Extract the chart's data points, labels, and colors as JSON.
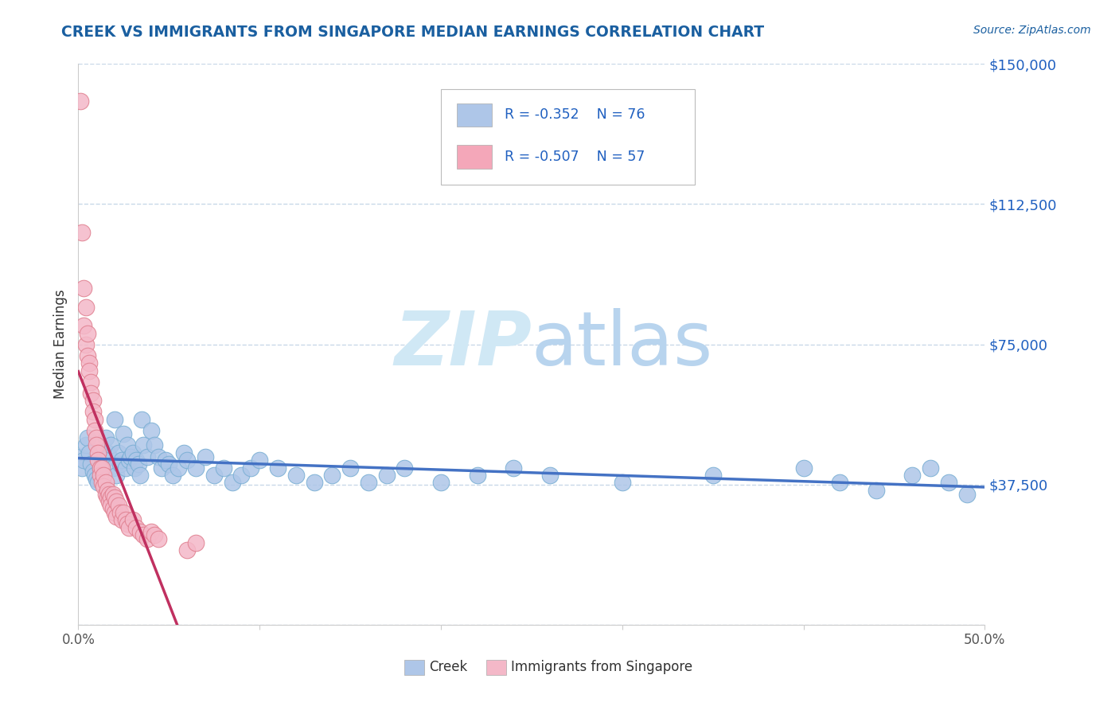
{
  "title": "CREEK VS IMMIGRANTS FROM SINGAPORE MEDIAN EARNINGS CORRELATION CHART",
  "source_text": "Source: ZipAtlas.com",
  "ylabel": "Median Earnings",
  "xlim": [
    0,
    0.5
  ],
  "ylim": [
    0,
    150000
  ],
  "xtick_positions": [
    0.0,
    0.1,
    0.2,
    0.3,
    0.4,
    0.5
  ],
  "xtick_labels_show": [
    "0.0%",
    "",
    "",
    "",
    "",
    "50.0%"
  ],
  "ytick_positions": [
    0,
    37500,
    75000,
    112500,
    150000
  ],
  "ytick_labels": [
    "",
    "$37,500",
    "$75,000",
    "$112,500",
    "$150,000"
  ],
  "legend_entries": [
    {
      "label": "Creek",
      "color": "#aec6e8",
      "R": "-0.352",
      "N": "76"
    },
    {
      "label": "Immigrants from Singapore",
      "color": "#f4a7b9",
      "R": "-0.507",
      "N": "57"
    }
  ],
  "creek_color": "#aec6e8",
  "creek_edge": "#7bafd4",
  "creek_line_color": "#4472c4",
  "singapore_color": "#f4b8c8",
  "singapore_edge": "#e08090",
  "singapore_line_color": "#c03060",
  "watermark_color": "#d0e8f5",
  "background_color": "#ffffff",
  "grid_color": "#c8d8e8",
  "title_color": "#1a5fa0",
  "ylabel_color": "#333333",
  "ytick_color": "#2060c0",
  "xtick_color": "#555555",
  "creek_x": [
    0.001,
    0.002,
    0.003,
    0.004,
    0.005,
    0.006,
    0.007,
    0.008,
    0.009,
    0.01,
    0.011,
    0.012,
    0.013,
    0.014,
    0.015,
    0.016,
    0.017,
    0.018,
    0.019,
    0.02,
    0.021,
    0.022,
    0.023,
    0.024,
    0.025,
    0.026,
    0.027,
    0.028,
    0.029,
    0.03,
    0.031,
    0.032,
    0.033,
    0.034,
    0.035,
    0.036,
    0.038,
    0.04,
    0.042,
    0.044,
    0.046,
    0.048,
    0.05,
    0.052,
    0.055,
    0.058,
    0.06,
    0.065,
    0.07,
    0.075,
    0.08,
    0.085,
    0.09,
    0.095,
    0.1,
    0.11,
    0.12,
    0.13,
    0.14,
    0.15,
    0.16,
    0.17,
    0.18,
    0.2,
    0.22,
    0.24,
    0.26,
    0.3,
    0.35,
    0.4,
    0.42,
    0.44,
    0.46,
    0.47,
    0.48,
    0.49
  ],
  "creek_y": [
    45000,
    42000,
    44000,
    48000,
    50000,
    46000,
    43000,
    41000,
    40000,
    39000,
    38000,
    42000,
    43000,
    44000,
    50000,
    46000,
    45000,
    48000,
    42000,
    55000,
    40000,
    46000,
    43000,
    44000,
    51000,
    42000,
    48000,
    44000,
    45000,
    46000,
    42000,
    44000,
    43000,
    40000,
    55000,
    48000,
    45000,
    52000,
    48000,
    45000,
    42000,
    44000,
    43000,
    40000,
    42000,
    46000,
    44000,
    42000,
    45000,
    40000,
    42000,
    38000,
    40000,
    42000,
    44000,
    42000,
    40000,
    38000,
    40000,
    42000,
    38000,
    40000,
    42000,
    38000,
    40000,
    42000,
    40000,
    38000,
    40000,
    42000,
    38000,
    36000,
    40000,
    42000,
    38000,
    35000
  ],
  "singapore_x": [
    0.001,
    0.002,
    0.003,
    0.003,
    0.004,
    0.004,
    0.005,
    0.005,
    0.006,
    0.006,
    0.007,
    0.007,
    0.008,
    0.008,
    0.009,
    0.009,
    0.01,
    0.01,
    0.011,
    0.011,
    0.012,
    0.012,
    0.013,
    0.013,
    0.014,
    0.014,
    0.015,
    0.015,
    0.016,
    0.016,
    0.017,
    0.017,
    0.018,
    0.018,
    0.019,
    0.019,
    0.02,
    0.02,
    0.021,
    0.021,
    0.022,
    0.023,
    0.024,
    0.025,
    0.026,
    0.027,
    0.028,
    0.03,
    0.032,
    0.034,
    0.036,
    0.038,
    0.04,
    0.042,
    0.044,
    0.06,
    0.065
  ],
  "singapore_y": [
    140000,
    105000,
    90000,
    80000,
    85000,
    75000,
    78000,
    72000,
    70000,
    68000,
    65000,
    62000,
    60000,
    57000,
    55000,
    52000,
    50000,
    48000,
    46000,
    44000,
    42000,
    40000,
    42000,
    38000,
    40000,
    37000,
    38000,
    35000,
    36000,
    34000,
    35000,
    33000,
    34000,
    32000,
    35000,
    31000,
    34000,
    30000,
    33000,
    29000,
    32000,
    30000,
    28000,
    30000,
    28000,
    27000,
    26000,
    28000,
    26000,
    25000,
    24000,
    23000,
    25000,
    24000,
    23000,
    20000,
    22000
  ]
}
